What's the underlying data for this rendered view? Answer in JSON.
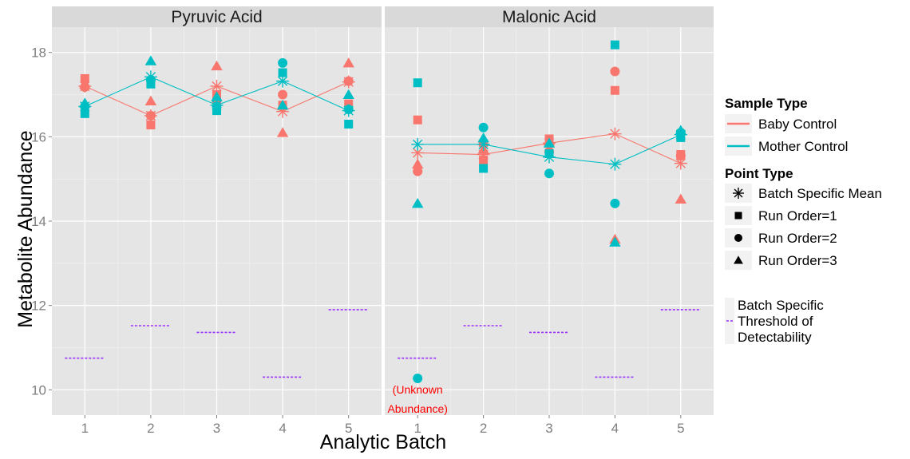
{
  "chart_data": {
    "type": "scatter",
    "xlabel": "Analytic Batch",
    "ylabel": "Metabolite Abundance",
    "xlim": [
      0.5,
      5.5
    ],
    "ylim": [
      9.4,
      18.6
    ],
    "x_ticks": [
      1,
      2,
      3,
      4,
      5
    ],
    "y_ticks": [
      10,
      12,
      14,
      16,
      18
    ],
    "grid": true,
    "legend_placement": "right",
    "colors": {
      "baby": "#f8766d",
      "mother": "#00bfc4",
      "threshold": "#9b30ff",
      "annotation": "#ff0000"
    },
    "panels": [
      {
        "title": "Pyruvic Acid",
        "threshold": [
          10.75,
          11.52,
          11.36,
          10.3,
          11.9
        ],
        "series": [
          {
            "name": "Baby Control",
            "color_key": "baby",
            "run1": [
              17.38,
              16.28,
              17.0,
              16.75,
              16.78
            ],
            "run2": [
              17.18,
              16.5,
              16.85,
              17.0,
              17.32
            ],
            "run3": [
              17.25,
              16.85,
              17.68,
              16.1,
              17.75
            ],
            "mean": [
              17.2,
              16.5,
              17.2,
              16.6,
              17.3
            ]
          },
          {
            "name": "Mother Control",
            "color_key": "mother",
            "run1": [
              16.55,
              17.25,
              16.62,
              17.52,
              16.3
            ],
            "run2": [
              16.72,
              17.35,
              16.72,
              17.75,
              16.65
            ],
            "run3": [
              16.8,
              17.8,
              16.95,
              16.75,
              17.0
            ],
            "mean": [
              16.72,
              17.42,
              16.75,
              17.32,
              16.62
            ]
          }
        ]
      },
      {
        "title": "Malonic Acid",
        "threshold": [
          10.75,
          11.52,
          11.36,
          10.3,
          11.9
        ],
        "series": [
          {
            "name": "Baby Control",
            "color_key": "baby",
            "run1": [
              16.4,
              15.45,
              15.95,
              17.1,
              15.58
            ],
            "run2": [
              15.18,
              15.82,
              15.65,
              17.55,
              15.55
            ],
            "run3": [
              15.35,
              15.7,
              15.9,
              13.57,
              14.52
            ],
            "mean": [
              15.62,
              15.58,
              15.85,
              16.07,
              15.37
            ]
          },
          {
            "name": "Mother Control",
            "color_key": "mother",
            "run1": [
              17.28,
              15.25,
              15.6,
              18.18,
              15.98
            ],
            "run2": [
              10.27,
              16.22,
              15.13,
              14.42,
              16.1
            ],
            "run3": [
              14.42,
              15.97,
              15.85,
              13.5,
              16.15
            ],
            "mean": [
              15.82,
              15.82,
              15.52,
              15.35,
              16.05
            ]
          }
        ]
      }
    ],
    "annotations": [
      {
        "panel": 1,
        "batch": 1,
        "lines": [
          "(Unknown",
          "Abundance)"
        ]
      }
    ],
    "legend": {
      "sample_type_title": "Sample Type",
      "sample_types": [
        "Baby Control",
        "Mother Control"
      ],
      "point_type_title": "Point Type",
      "point_types": [
        "Batch Specific Mean",
        "Run Order=1",
        "Run Order=2",
        "Run Order=3"
      ],
      "threshold_lines": [
        "Batch Specific",
        "Threshold of",
        "Detectability"
      ]
    }
  }
}
